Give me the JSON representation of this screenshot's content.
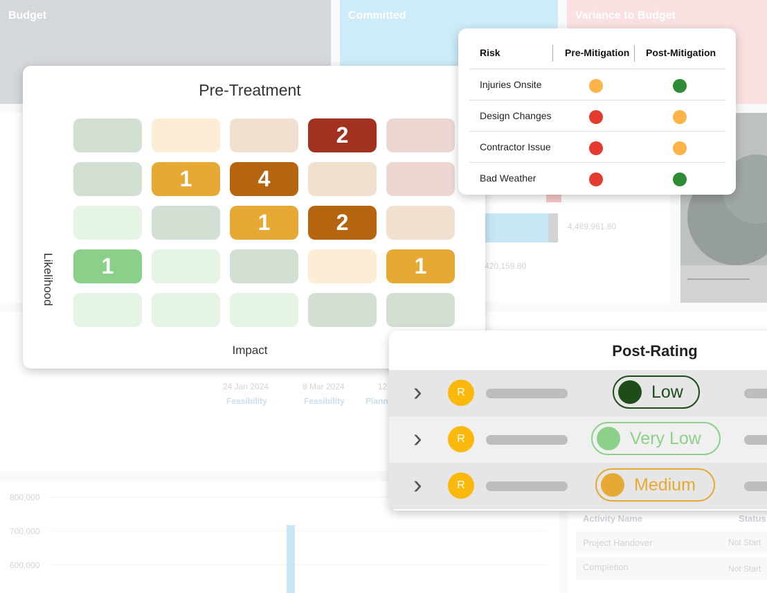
{
  "background": {
    "kpis": [
      {
        "label": "Budget",
        "color": "#bfc3c8"
      },
      {
        "label": "Committed",
        "color": "#b3e1f6"
      },
      {
        "label": "Variance to Budget",
        "color": "#f8cfd2"
      }
    ],
    "bar_values": [
      "4,489,961.80",
      "420,159.80"
    ],
    "timeline": [
      {
        "date": "24 Jan 2024",
        "stage": "Feasibility"
      },
      {
        "date": "8 Mar 2024",
        "stage": "Feasibility"
      },
      {
        "date": "12",
        "stage": "Plann"
      }
    ],
    "y_ticks": [
      "800,000",
      "700,000",
      "600,000"
    ],
    "activity": {
      "headers": [
        "Activity Name",
        "Status"
      ],
      "rows": [
        {
          "name": "Project Handover",
          "status": "Not Start"
        },
        {
          "name": "Completion",
          "status": "Not Start"
        }
      ]
    }
  },
  "pre_treatment": {
    "title": "Pre-Treatment",
    "y_label": "Likelihood",
    "x_label": "Impact",
    "grid": [
      [
        {
          "color": "#d2dfd2",
          "value": ""
        },
        {
          "color": "#fcedd4",
          "value": ""
        },
        {
          "color": "#f1e0d0",
          "value": ""
        },
        {
          "color": "#a33120",
          "value": "2"
        },
        {
          "color": "#ecd7d2",
          "value": ""
        }
      ],
      [
        {
          "color": "#d2dfd2",
          "value": ""
        },
        {
          "color": "#e6a934",
          "value": "1"
        },
        {
          "color": "#b5650f",
          "value": "4"
        },
        {
          "color": "#f1e0d0",
          "value": ""
        },
        {
          "color": "#ecd7d2",
          "value": ""
        }
      ],
      [
        {
          "color": "#e6f4e5",
          "value": ""
        },
        {
          "color": "#d2dfd2",
          "value": ""
        },
        {
          "color": "#e6a934",
          "value": "1"
        },
        {
          "color": "#b5650f",
          "value": "2"
        },
        {
          "color": "#f1e0d0",
          "value": ""
        }
      ],
      [
        {
          "color": "#8ad08b",
          "value": "1"
        },
        {
          "color": "#e6f4e5",
          "value": ""
        },
        {
          "color": "#d2dfd2",
          "value": ""
        },
        {
          "color": "#fcedd4",
          "value": ""
        },
        {
          "color": "#e6a934",
          "value": "1"
        }
      ],
      [
        {
          "color": "#e6f4e5",
          "value": ""
        },
        {
          "color": "#e6f4e5",
          "value": ""
        },
        {
          "color": "#e6f4e5",
          "value": ""
        },
        {
          "color": "#d2dfd2",
          "value": ""
        },
        {
          "color": "#d2dfd2",
          "value": ""
        }
      ]
    ]
  },
  "risk_table": {
    "headers": {
      "risk": "Risk",
      "pre": "Pre-Mitigation",
      "post": "Post-Mitigation"
    },
    "rows": [
      {
        "name": "Injuries Onsite",
        "pre": "#fbb447",
        "post": "#2e8b36"
      },
      {
        "name": "Design Changes",
        "pre": "#e33b2e",
        "post": "#fbb447"
      },
      {
        "name": "Contractor Issue",
        "pre": "#e33b2e",
        "post": "#fbb447"
      },
      {
        "name": "Bad Weather",
        "pre": "#e33b2e",
        "post": "#2e8b36"
      }
    ]
  },
  "post_rating": {
    "title": "Post-Rating",
    "rows": [
      {
        "avatar": "R",
        "rating": "Low",
        "color": "#1e4d1a"
      },
      {
        "avatar": "R",
        "rating": "Very Low",
        "color": "#8bd18a"
      },
      {
        "avatar": "R",
        "rating": "Medium",
        "color": "#e6a934"
      }
    ]
  }
}
